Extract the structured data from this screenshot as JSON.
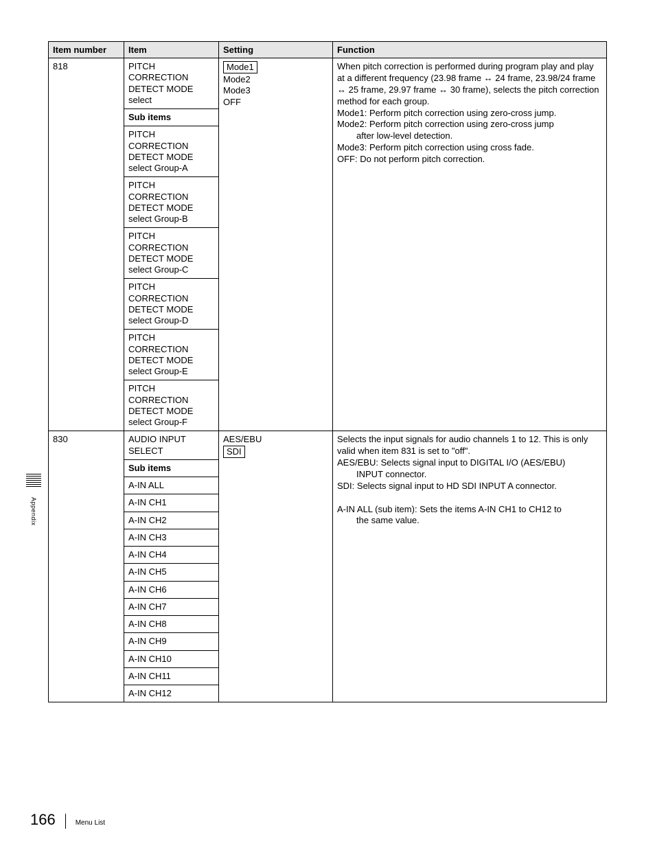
{
  "page": {
    "number": "166",
    "footer_label": "Menu List",
    "side_label": "Appendix"
  },
  "table": {
    "headers": {
      "item_number": "Item number",
      "item": "Item",
      "setting": "Setting",
      "function": "Function"
    },
    "rows": [
      {
        "number": "818",
        "items": [
          "PITCH CORRECTION DETECT MODE select",
          "Sub items",
          "PITCH CORRECTION DETECT MODE select Group-A",
          "PITCH CORRECTION DETECT MODE select Group-B",
          "PITCH CORRECTION DETECT MODE select Group-C",
          "PITCH CORRECTION DETECT MODE select Group-D",
          "PITCH CORRECTION DETECT MODE select Group-E",
          "PITCH CORRECTION DETECT MODE select Group-F"
        ],
        "setting_boxed": "Mode1",
        "setting_rest": [
          "Mode2",
          "Mode3",
          "OFF"
        ],
        "function_lines": [
          "When pitch correction is performed during program play and play at a different frequency (23.98 frame ↔ 24 frame, 23.98/24 frame ↔ 25 frame, 29.97 frame ↔ 30 frame), selects the pitch correction method for each group.",
          "Mode1: Perform pitch correction using zero-cross jump.",
          "Mode2: Perform pitch correction using zero-cross jump",
          "after low-level detection.",
          "Mode3: Perform pitch correction using cross fade.",
          "OFF: Do not perform pitch correction."
        ]
      },
      {
        "number": "830",
        "items": [
          "AUDIO INPUT SELECT",
          "Sub items",
          "A-IN ALL",
          "A-IN CH1",
          "A-IN CH2",
          "A-IN CH3",
          "A-IN CH4",
          "A-IN CH5",
          "A-IN CH6",
          "A-IN CH7",
          "A-IN CH8",
          "A-IN CH9",
          "A-IN CH10",
          "A-IN CH11",
          "A-IN CH12"
        ],
        "setting_plain": "AES/EBU",
        "setting_boxed": "SDI",
        "function_lines": [
          "Selects the input signals for audio channels 1 to 12. This is only valid when item 831 is set to \"off\".",
          "AES/EBU: Selects signal input to DIGITAL I/O (AES/EBU)",
          "INPUT connector.",
          "SDI: Selects signal input to HD SDI INPUT A connector.",
          "",
          "A-IN ALL (sub item): Sets the items A-IN CH1 to CH12 to",
          "the same value."
        ]
      }
    ]
  }
}
